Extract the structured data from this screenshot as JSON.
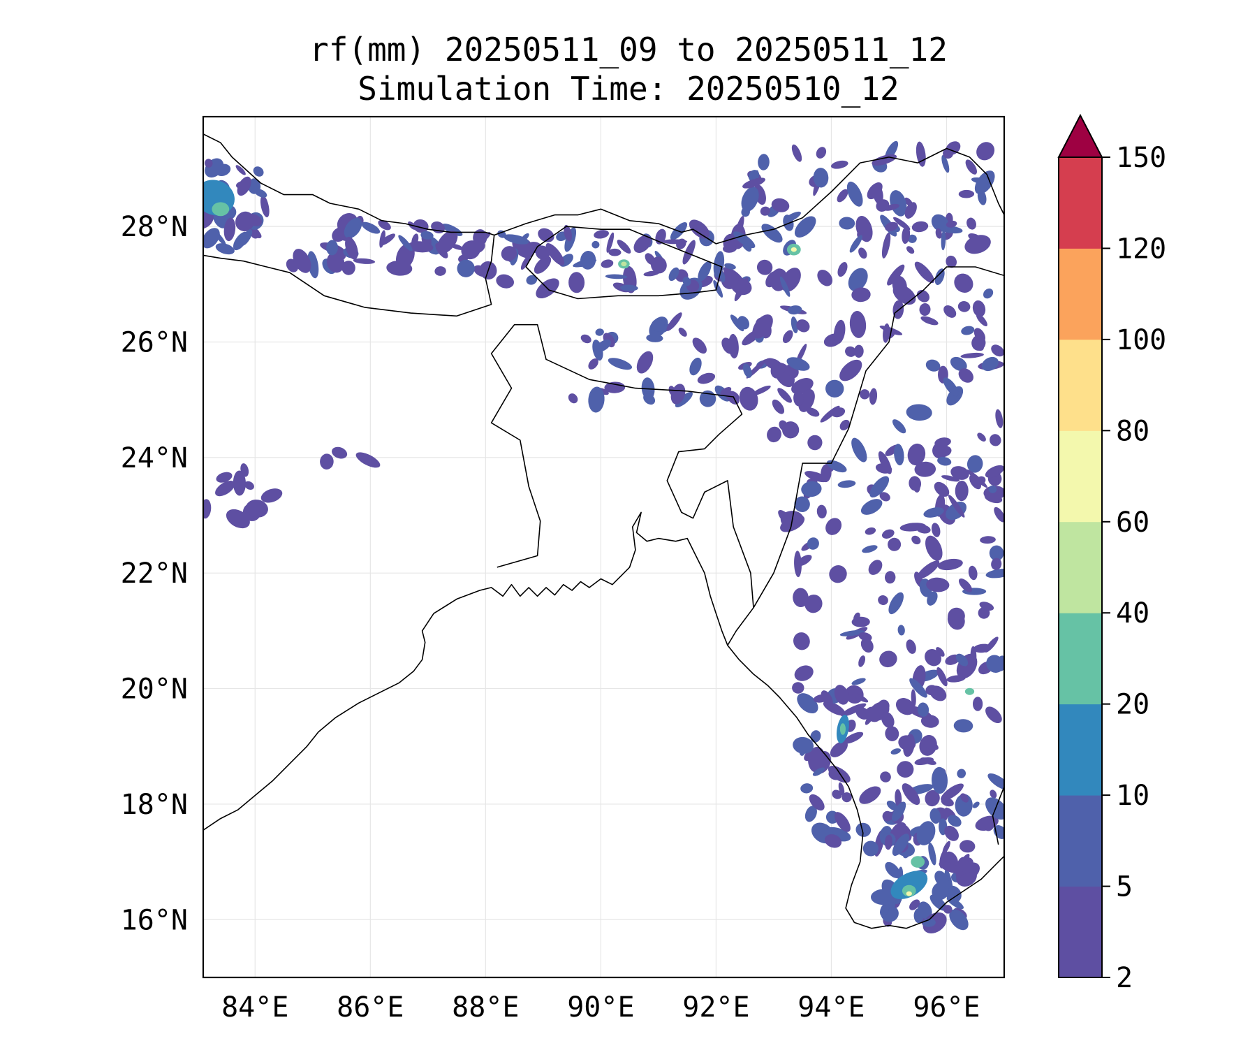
{
  "title": {
    "line1": "rf(mm) 20250511_09 to 20250511_12",
    "line2": "Simulation Time: 20250510_12"
  },
  "map": {
    "lon_range": [
      83.1,
      97.0
    ],
    "lat_range": [
      15.0,
      29.9
    ],
    "lon_ticks": [
      84,
      86,
      88,
      90,
      92,
      94,
      96
    ],
    "lat_ticks": [
      16,
      18,
      20,
      22,
      24,
      26,
      28
    ],
    "lon_tick_labels": [
      "84°E",
      "86°E",
      "88°E",
      "90°E",
      "92°E",
      "94°E",
      "96°E"
    ],
    "lat_tick_labels": [
      "16°N",
      "18°N",
      "20°N",
      "22°N",
      "24°N",
      "26°N",
      "28°N"
    ],
    "gridlines": true,
    "coastline_color": "#000000"
  },
  "colorbar": {
    "levels": [
      2,
      5,
      10,
      20,
      40,
      60,
      80,
      100,
      120,
      150
    ],
    "level_labels": [
      "2",
      "5",
      "10",
      "20",
      "40",
      "60",
      "80",
      "100",
      "120",
      "150"
    ],
    "colors": [
      "#5e4fa2",
      "#4f61ab",
      "#3288bd",
      "#66c2a5",
      "#bfe5a0",
      "#f3f8ad",
      "#fee08b",
      "#fba35c",
      "#d53e4f"
    ],
    "extend_color": "#9e0142",
    "extend": "max"
  }
}
